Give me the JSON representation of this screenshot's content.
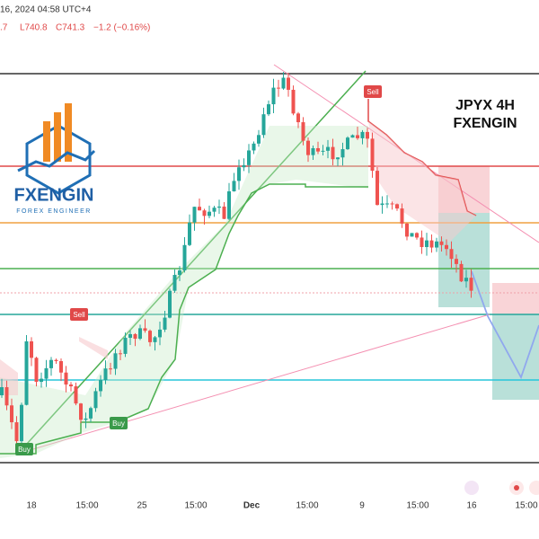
{
  "header": {
    "date": "16, 2024 04:58 UTC+4",
    "open": ".7",
    "low": "L740.8",
    "close": "C741.3",
    "change": "−1.2 (−0.16%)"
  },
  "overlay": {
    "symbol": "JPYX 4H",
    "brand": "FXENGIN"
  },
  "logo": {
    "name": "FXENGIN",
    "tagline": "FOREX ENGINEER"
  },
  "signals": [
    "Sell",
    "Sell",
    "Buy",
    "Buy"
  ],
  "x_axis": [
    "18",
    "15:00",
    "25",
    "15:00",
    "Dec",
    "15:00",
    "9",
    "15:00",
    "16",
    "15:00"
  ]
}
